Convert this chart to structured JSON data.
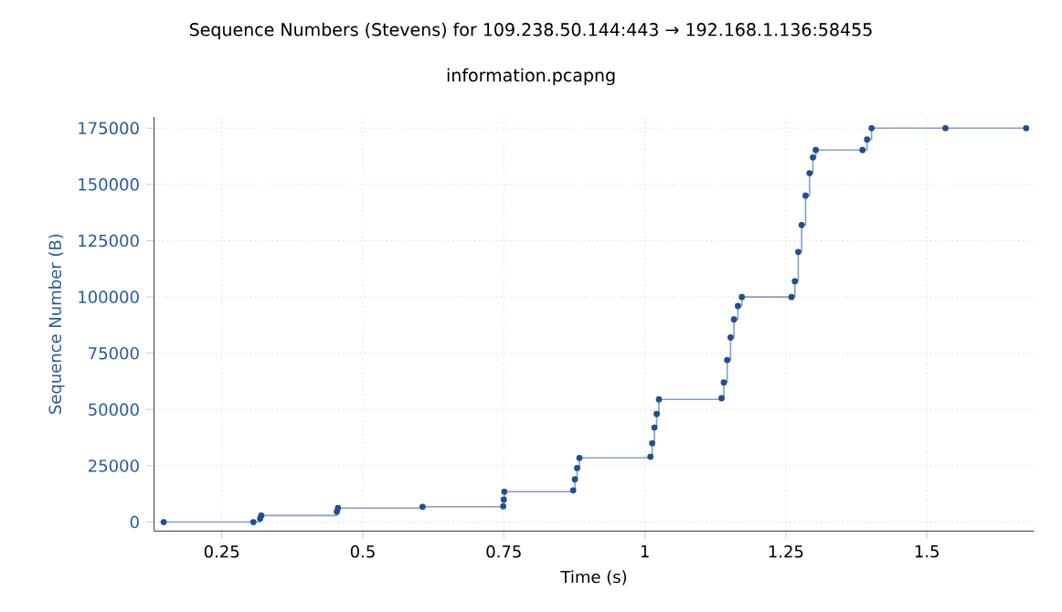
{
  "chart_data": {
    "type": "step",
    "title": "Sequence Numbers (Stevens) for 109.238.50.144:443 → 192.168.1.136:58455",
    "subtitle": "information.pcapng",
    "xlabel": "Time (s)",
    "ylabel": "Sequence Number (B)",
    "xlim": [
      0.13,
      1.69
    ],
    "ylim": [
      -4000,
      180000
    ],
    "xticks": [
      0.25,
      0.5,
      0.75,
      1,
      1.25,
      1.5
    ],
    "yticks": [
      0,
      25000,
      50000,
      75000,
      100000,
      125000,
      150000,
      175000
    ],
    "grid": true,
    "marker": "circle",
    "line_style": "solid",
    "series": [
      {
        "color": "#234f8f",
        "x": [
          0.147,
          0.306,
          0.318,
          0.32,
          0.454,
          0.456,
          0.606,
          0.749,
          0.75,
          0.751,
          0.873,
          0.876,
          0.88,
          0.884,
          1.01,
          1.013,
          1.017,
          1.021,
          1.025,
          1.136,
          1.14,
          1.146,
          1.152,
          1.158,
          1.165,
          1.172,
          1.26,
          1.266,
          1.272,
          1.278,
          1.285,
          1.292,
          1.298,
          1.303,
          1.386,
          1.394,
          1.402,
          1.533,
          1.676
        ],
        "values": [
          0,
          0,
          1500,
          2900,
          4600,
          6200,
          6800,
          7000,
          10000,
          13500,
          14100,
          19000,
          24000,
          28500,
          29000,
          35000,
          42000,
          48000,
          54500,
          55000,
          62000,
          72000,
          82000,
          90000,
          96000,
          100000,
          100000,
          107000,
          120000,
          132000,
          145000,
          155000,
          162000,
          165300,
          165300,
          170000,
          175000,
          175000,
          175000
        ]
      }
    ]
  }
}
